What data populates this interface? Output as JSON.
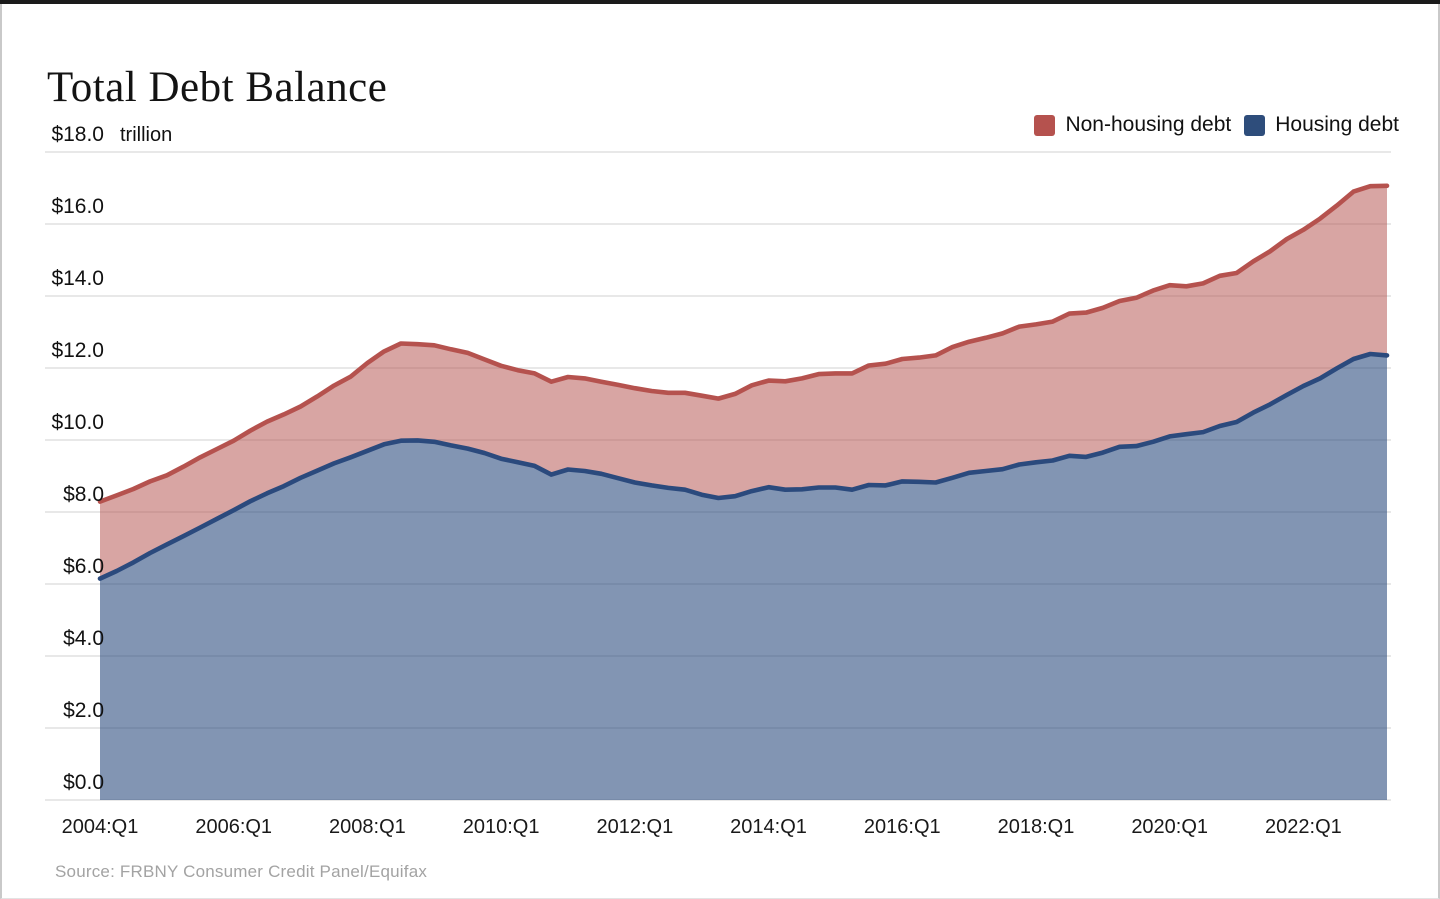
{
  "page": {
    "title": "Total Debt Balance",
    "source_note": "Source: FRBNY Consumer Credit Panel/Equifax",
    "unit_label": "trillion"
  },
  "legend": [
    {
      "label": "Non-housing debt",
      "color": "#b5524e"
    },
    {
      "label": "Housing debt",
      "color": "#2e4d7b"
    }
  ],
  "chart_data": {
    "type": "area",
    "stacked": true,
    "title": "Total Debt Balance",
    "ylabel": "$ trillion",
    "ylim": [
      0,
      18
    ],
    "grid": "horizontal",
    "legend_position": "top-right",
    "x_start": "2004:Q1",
    "x_end": "2023:Q2",
    "frequency": "quarterly",
    "y_ticks": [
      {
        "value": 0,
        "label": "$0.0"
      },
      {
        "value": 2,
        "label": "$2.0"
      },
      {
        "value": 4,
        "label": "$4.0"
      },
      {
        "value": 6,
        "label": "$6.0"
      },
      {
        "value": 8,
        "label": "$8.0"
      },
      {
        "value": 10,
        "label": "$10.0"
      },
      {
        "value": 12,
        "label": "$12.0"
      },
      {
        "value": 14,
        "label": "$14.0"
      },
      {
        "value": 16,
        "label": "$16.0"
      },
      {
        "value": 18,
        "label": "$18.0"
      }
    ],
    "x_ticks": [
      {
        "quarter_index": 0,
        "label": "2004:Q1"
      },
      {
        "quarter_index": 8,
        "label": "2006:Q1"
      },
      {
        "quarter_index": 16,
        "label": "2008:Q1"
      },
      {
        "quarter_index": 24,
        "label": "2010:Q1"
      },
      {
        "quarter_index": 32,
        "label": "2012:Q1"
      },
      {
        "quarter_index": 40,
        "label": "2014:Q1"
      },
      {
        "quarter_index": 48,
        "label": "2016:Q1"
      },
      {
        "quarter_index": 56,
        "label": "2018:Q1"
      },
      {
        "quarter_index": 64,
        "label": "2020:Q1"
      },
      {
        "quarter_index": 72,
        "label": "2022:Q1"
      }
    ],
    "series": [
      {
        "id": "housing",
        "name": "Housing debt",
        "line_color": "#2b4a7d",
        "fill_color": "rgba(43,74,125,0.59)",
        "values": [
          6.15,
          6.36,
          6.6,
          6.86,
          7.1,
          7.33,
          7.57,
          7.81,
          8.05,
          8.3,
          8.52,
          8.72,
          8.95,
          9.15,
          9.35,
          9.52,
          9.7,
          9.88,
          9.98,
          9.99,
          9.95,
          9.85,
          9.76,
          9.64,
          9.48,
          9.38,
          9.28,
          9.04,
          9.18,
          9.14,
          9.06,
          8.94,
          8.82,
          8.74,
          8.67,
          8.62,
          8.48,
          8.39,
          8.44,
          8.58,
          8.69,
          8.62,
          8.63,
          8.68,
          8.68,
          8.62,
          8.75,
          8.74,
          8.85,
          8.84,
          8.82,
          8.95,
          9.09,
          9.14,
          9.19,
          9.32,
          9.38,
          9.43,
          9.56,
          9.53,
          9.65,
          9.81,
          9.83,
          9.95,
          10.1,
          10.16,
          10.22,
          10.39,
          10.5,
          10.76,
          10.99,
          11.25,
          11.5,
          11.71,
          11.99,
          12.25,
          12.39,
          12.35
        ]
      },
      {
        "id": "non_housing",
        "name": "Non-housing debt",
        "line_color": "#b5524e",
        "fill_color": "rgba(181,82,78,0.52)",
        "values": [
          2.14,
          2.1,
          2.04,
          1.99,
          1.92,
          1.93,
          1.95,
          1.94,
          1.93,
          1.96,
          1.99,
          1.99,
          1.98,
          2.06,
          2.16,
          2.24,
          2.44,
          2.58,
          2.7,
          2.67,
          2.68,
          2.67,
          2.66,
          2.6,
          2.58,
          2.56,
          2.57,
          2.58,
          2.57,
          2.57,
          2.56,
          2.59,
          2.62,
          2.62,
          2.64,
          2.69,
          2.75,
          2.76,
          2.84,
          2.94,
          2.96,
          3.01,
          3.08,
          3.15,
          3.17,
          3.23,
          3.32,
          3.38,
          3.4,
          3.45,
          3.53,
          3.63,
          3.64,
          3.7,
          3.77,
          3.83,
          3.83,
          3.86,
          3.95,
          4.01,
          4.02,
          4.05,
          4.12,
          4.2,
          4.2,
          4.11,
          4.13,
          4.17,
          4.14,
          4.2,
          4.25,
          4.33,
          4.34,
          4.44,
          4.52,
          4.65,
          4.66,
          4.71
        ]
      }
    ],
    "total_latest": 17.06,
    "gridline_color": "#d9d9d9"
  },
  "layout_colors": {
    "top_edge": "#1b1b1b",
    "side_border": "#c9c9c9"
  }
}
